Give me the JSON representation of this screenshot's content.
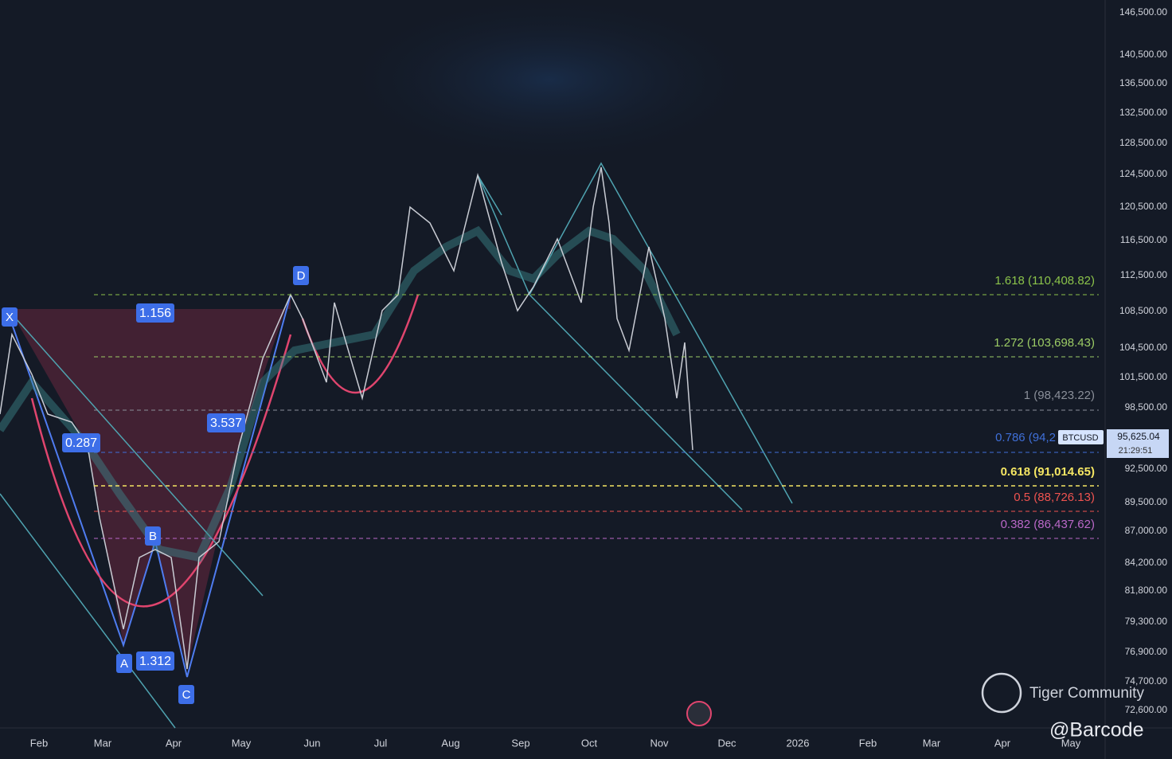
{
  "chart": {
    "symbol": "BTCUSD",
    "last_price": "95,625.04",
    "countdown": "21:29:51",
    "price_axis": [
      "146,500.00",
      "140,500.00",
      "136,500.00",
      "132,500.00",
      "128,500.00",
      "124,500.00",
      "120,500.00",
      "116,500.00",
      "112,500.00",
      "108,500.00",
      "104,500.00",
      "101,500.00",
      "98,500.00",
      "92,500.00",
      "89,500.00",
      "87,000.00",
      "84,200.00",
      "81,800.00",
      "79,300.00",
      "76,900.00",
      "74,700.00",
      "72,600.00"
    ],
    "time_axis": [
      "Feb",
      "Mar",
      "Apr",
      "May",
      "Jun",
      "Jul",
      "Aug",
      "Sep",
      "Oct",
      "Nov",
      "Dec",
      "2026",
      "Feb",
      "Mar",
      "Apr",
      "May"
    ],
    "fib_levels": [
      "1.618 (110,408.82)",
      "1.272 (103,698.43)",
      "1 (98,423.22)",
      "0.786 (94,2",
      "0.618 (91,014.65)",
      "0.5 (88,726.13)",
      "0.382 (86,437.62)"
    ],
    "pattern_points": [
      "X",
      "D",
      "B",
      "A",
      "C"
    ],
    "pattern_ratios": [
      "1.156",
      "0.287",
      "3.537",
      "1.312"
    ],
    "watermark": {
      "brand": "Tiger Community",
      "handle": "@Barcode"
    }
  }
}
